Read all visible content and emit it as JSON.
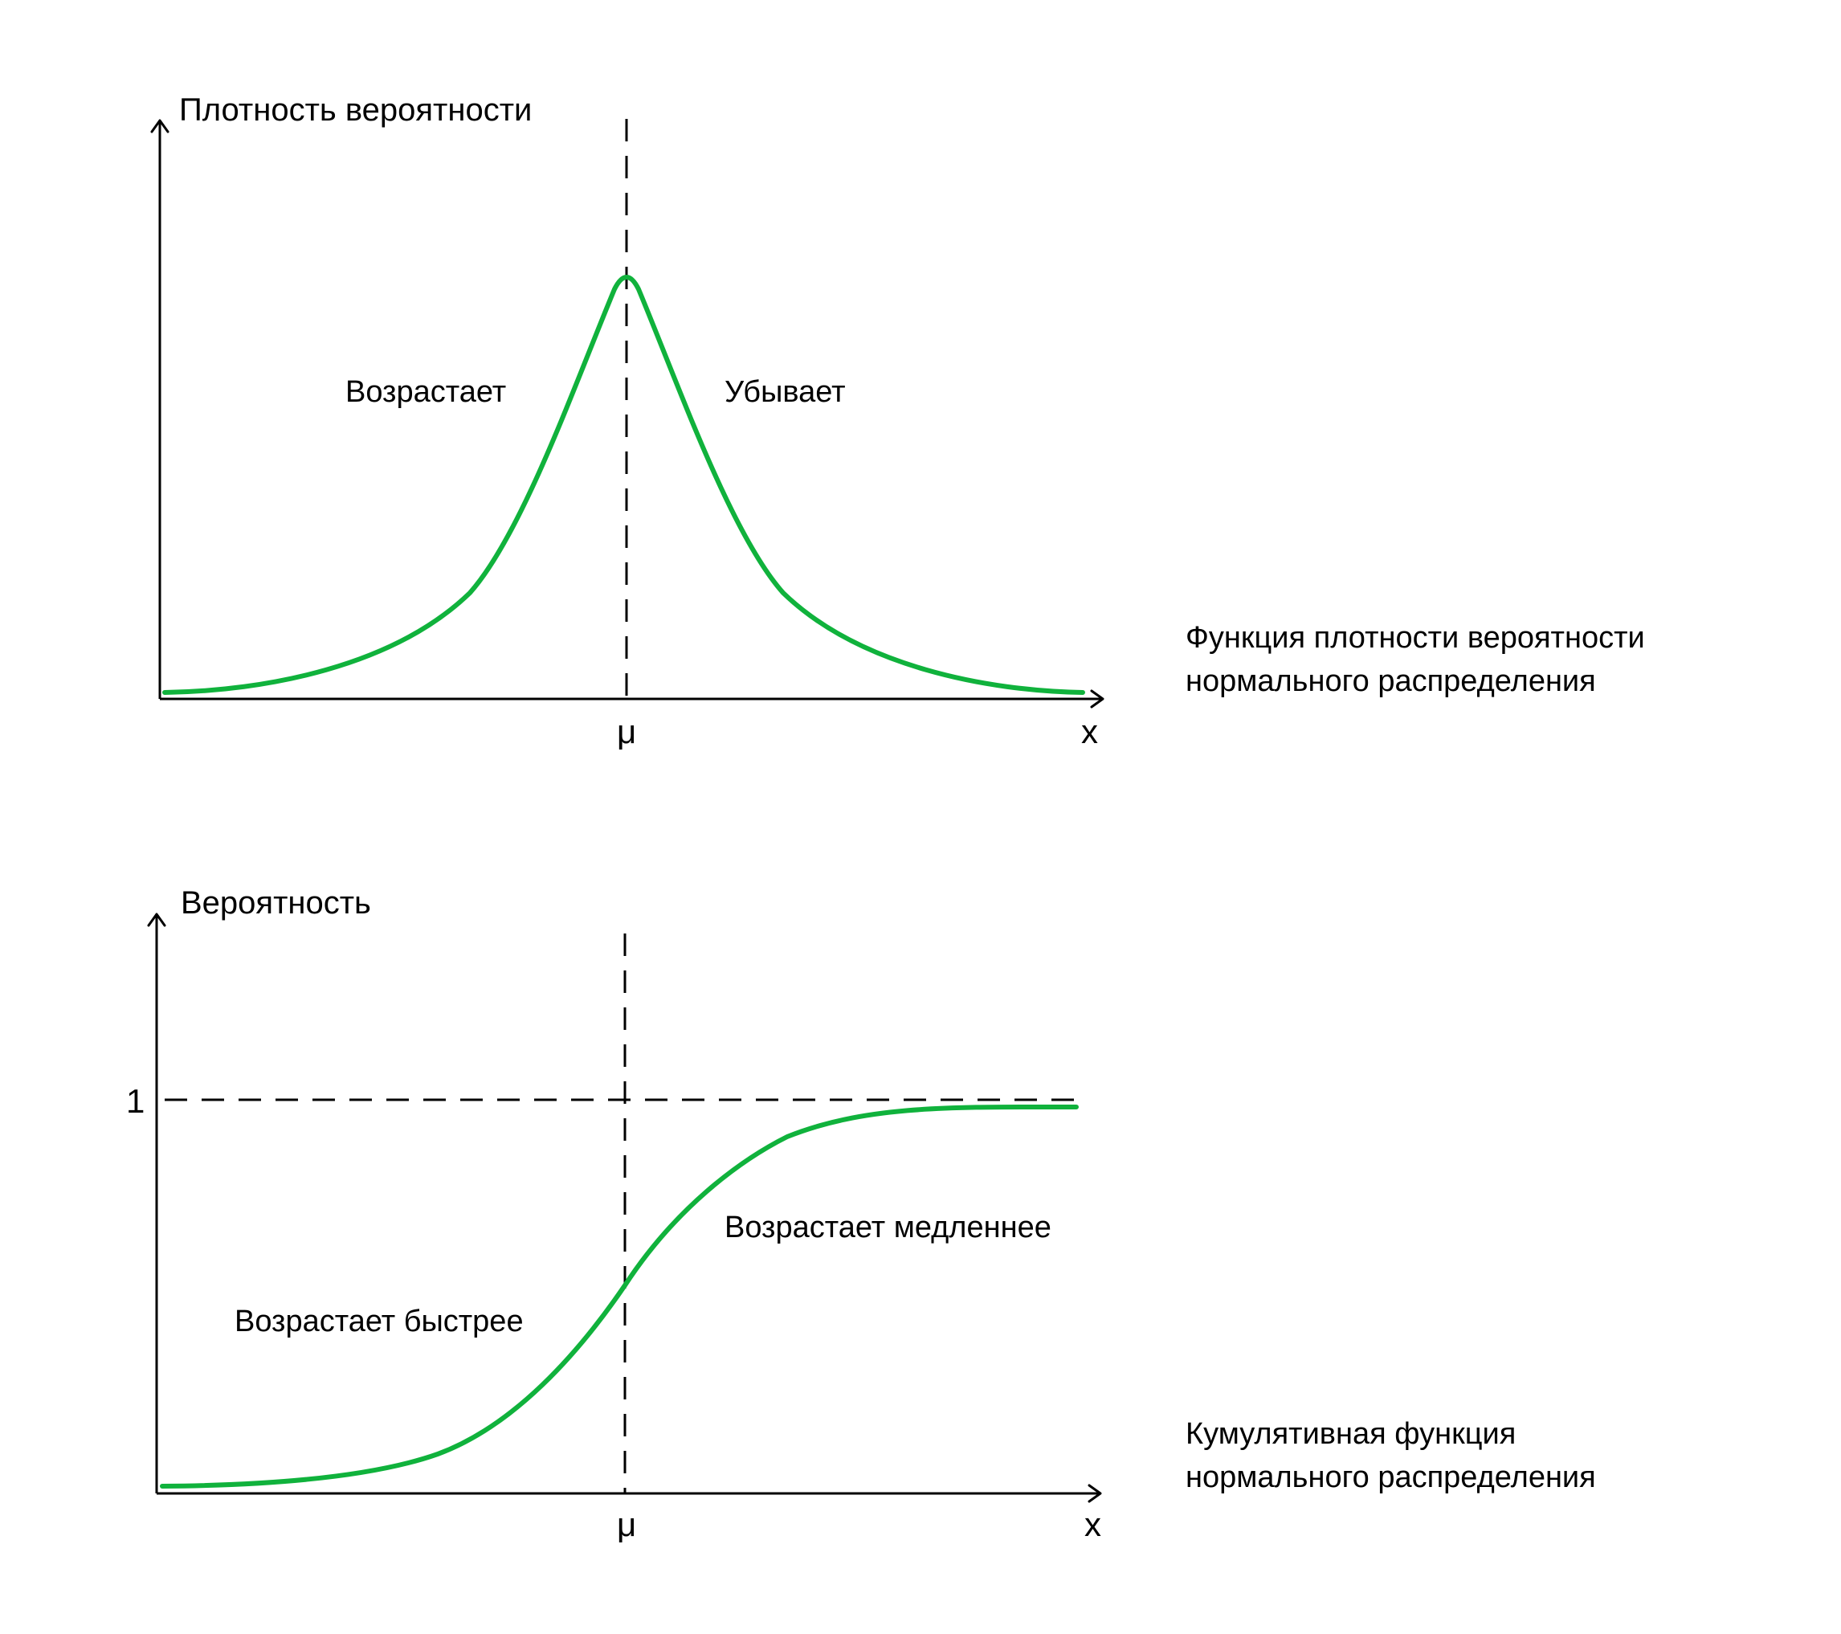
{
  "colors": {
    "curve": "#10b23c",
    "axes": "#000000",
    "background": "#ffffff"
  },
  "pdf_panel": {
    "y_axis_title": "Плотность вероятности",
    "left_note": "Возрастает",
    "right_note": "Убывает",
    "mean_label": "μ",
    "x_label": "x",
    "caption_line1": "Функция плотности вероятности",
    "caption_line2": "нормального распределения"
  },
  "cdf_panel": {
    "y_axis_title": "Вероятность",
    "one_label": "1",
    "upper_note": "Возрастает медленнее",
    "lower_note": "Возрастает быстрее",
    "mean_label": "μ",
    "x_label": "x",
    "caption_line1": "Кумулятивная функция",
    "caption_line2": "нормального распределения"
  }
}
